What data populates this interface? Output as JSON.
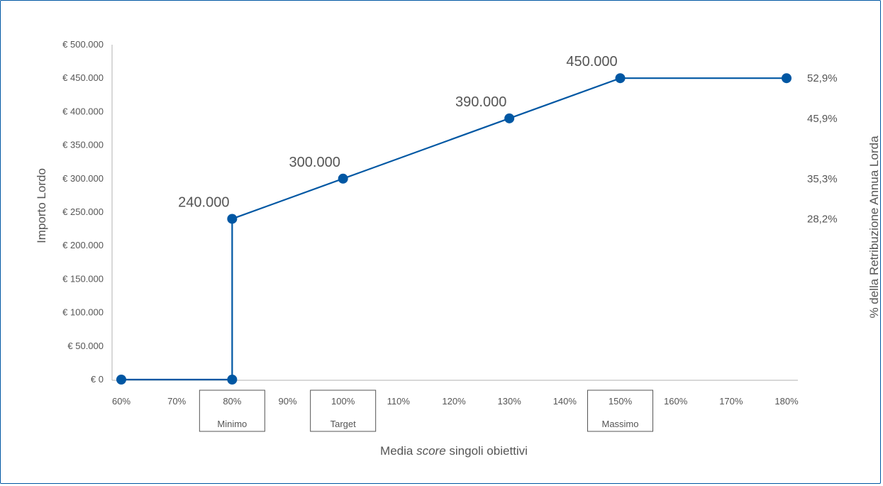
{
  "chart_data": {
    "type": "line",
    "xlabel_parts": [
      "Media ",
      "score",
      " singoli obiettivi"
    ],
    "ylabel": "Importo Lordo",
    "y2label": "% della Retribuzione Annua Lorda",
    "x_ticks": [
      "60%",
      "70%",
      "80%",
      "90%",
      "100%",
      "110%",
      "120%",
      "130%",
      "140%",
      "150%",
      "160%",
      "170%",
      "180%"
    ],
    "y_ticks": [
      "€ 0",
      "€ 50.000",
      "€ 100.000",
      "€ 150.000",
      "€ 200.000",
      "€ 250.000",
      "€ 300.000",
      "€ 350.000",
      "€ 400.000",
      "€ 450.000",
      "€ 500.000"
    ],
    "ylim": [
      0,
      500000
    ],
    "xlim": [
      60,
      180
    ],
    "series": [
      {
        "points": [
          {
            "x": 60,
            "y": 0
          },
          {
            "x": 80,
            "y": 0
          },
          {
            "x": 80,
            "y": 240000
          },
          {
            "x": 100,
            "y": 300000
          },
          {
            "x": 130,
            "y": 390000
          },
          {
            "x": 150,
            "y": 450000
          },
          {
            "x": 180,
            "y": 450000
          }
        ],
        "markers": [
          {
            "x": 60,
            "y": 0
          },
          {
            "x": 80,
            "y": 0
          },
          {
            "x": 80,
            "y": 240000
          },
          {
            "x": 100,
            "y": 300000
          },
          {
            "x": 130,
            "y": 390000
          },
          {
            "x": 150,
            "y": 450000
          },
          {
            "x": 180,
            "y": 450000
          }
        ]
      }
    ],
    "data_labels": [
      {
        "x": 80,
        "y": 240000,
        "text": "240.000"
      },
      {
        "x": 100,
        "y": 300000,
        "text": "300.000"
      },
      {
        "x": 130,
        "y": 390000,
        "text": "390.000"
      },
      {
        "x": 150,
        "y": 450000,
        "text": "450.000"
      }
    ],
    "percent_labels": [
      {
        "y": 450000,
        "text": "52,9%"
      },
      {
        "y": 390000,
        "text": "45,9%"
      },
      {
        "y": 300000,
        "text": "35,3%"
      },
      {
        "y": 240000,
        "text": "28,2%"
      }
    ],
    "threshold_boxes": [
      {
        "x": 80,
        "pct": "80%",
        "label": "Minimo"
      },
      {
        "x": 100,
        "pct": "100%",
        "label": "Target"
      },
      {
        "x": 150,
        "pct": "150%",
        "label": "Massimo"
      }
    ],
    "line_color": "#0057a3",
    "grid": false
  }
}
